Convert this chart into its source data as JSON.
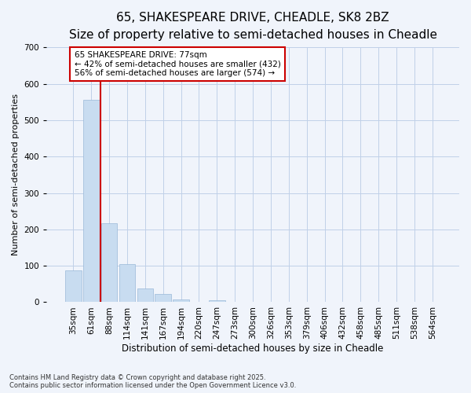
{
  "title": "65, SHAKESPEARE DRIVE, CHEADLE, SK8 2BZ",
  "subtitle": "Size of property relative to semi-detached houses in Cheadle",
  "xlabel": "Distribution of semi-detached houses by size in Cheadle",
  "ylabel": "Number of semi-detached properties",
  "categories": [
    "35sqm",
    "61sqm",
    "88sqm",
    "114sqm",
    "141sqm",
    "167sqm",
    "194sqm",
    "220sqm",
    "247sqm",
    "273sqm",
    "300sqm",
    "326sqm",
    "353sqm",
    "379sqm",
    "406sqm",
    "432sqm",
    "458sqm",
    "485sqm",
    "511sqm",
    "538sqm",
    "564sqm"
  ],
  "values": [
    88,
    555,
    218,
    105,
    37,
    23,
    8,
    0,
    5,
    0,
    0,
    0,
    0,
    0,
    0,
    0,
    0,
    0,
    0,
    0,
    0
  ],
  "bar_color": "#c8dcf0",
  "bar_edgecolor": "#9ab8d8",
  "grid_color": "#c0d0e8",
  "background_color": "#f0f4fb",
  "property_label": "65 SHAKESPEARE DRIVE: 77sqm",
  "pct_smaller": 42,
  "count_smaller": 432,
  "pct_larger": 56,
  "count_larger": 574,
  "vline_x": 1.5,
  "annotation_box_color": "#cc0000",
  "ylim": [
    0,
    700
  ],
  "yticks": [
    0,
    100,
    200,
    300,
    400,
    500,
    600,
    700
  ],
  "footer": "Contains HM Land Registry data © Crown copyright and database right 2025.\nContains public sector information licensed under the Open Government Licence v3.0.",
  "title_fontsize": 11,
  "subtitle_fontsize": 9.5,
  "tick_fontsize": 7.5,
  "ylabel_fontsize": 8,
  "xlabel_fontsize": 8.5,
  "annot_fontsize": 7.5,
  "footer_fontsize": 6
}
